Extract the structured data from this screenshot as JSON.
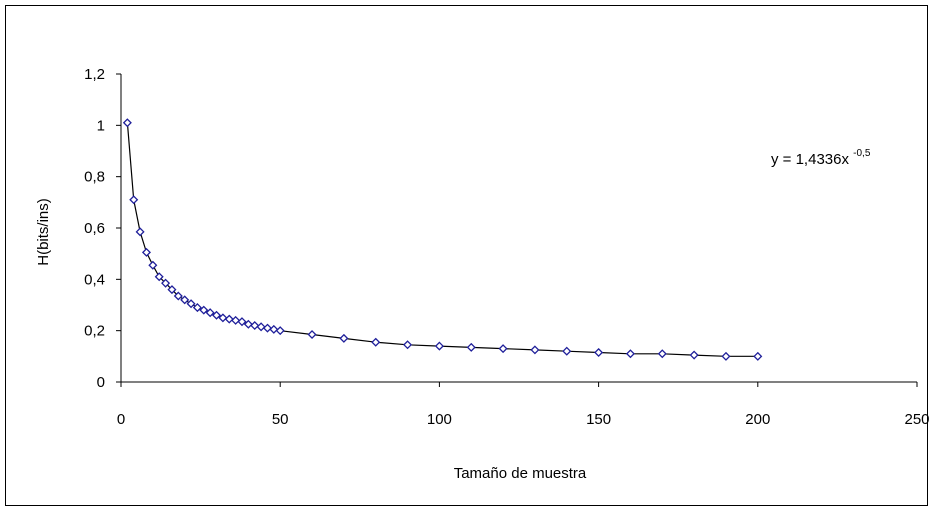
{
  "chart_data": {
    "type": "scatter",
    "title": "",
    "xlabel": "Tamaño de muestra",
    "ylabel": "H(bits/ins)",
    "xlim": [
      0,
      250
    ],
    "ylim": [
      0,
      1.2
    ],
    "x_ticks": [
      "0",
      "50",
      "100",
      "150",
      "200",
      "250"
    ],
    "y_ticks": [
      "0",
      "0,2",
      "0,4",
      "0,6",
      "0,8",
      "1",
      "1,2"
    ],
    "grid": false,
    "legend": "none",
    "annotation": {
      "text": "y = 1,4336x",
      "exponent": "-0,5"
    },
    "series": [
      {
        "marker": "diamond",
        "marker_color": "#1f1f9a",
        "line_color": "#000000",
        "x": [
          2,
          4,
          6,
          8,
          10,
          12,
          14,
          16,
          18,
          20,
          22,
          24,
          26,
          28,
          30,
          32,
          34,
          36,
          38,
          40,
          42,
          44,
          46,
          48,
          50,
          60,
          70,
          80,
          90,
          100,
          110,
          120,
          130,
          140,
          150,
          160,
          170,
          180,
          190,
          200
        ],
        "y": [
          1.01,
          0.71,
          0.585,
          0.505,
          0.455,
          0.41,
          0.385,
          0.36,
          0.335,
          0.32,
          0.305,
          0.29,
          0.28,
          0.27,
          0.26,
          0.25,
          0.245,
          0.24,
          0.235,
          0.225,
          0.22,
          0.215,
          0.21,
          0.205,
          0.2,
          0.185,
          0.17,
          0.155,
          0.145,
          0.14,
          0.135,
          0.13,
          0.125,
          0.12,
          0.115,
          0.11,
          0.11,
          0.105,
          0.1,
          0.1
        ]
      }
    ]
  }
}
